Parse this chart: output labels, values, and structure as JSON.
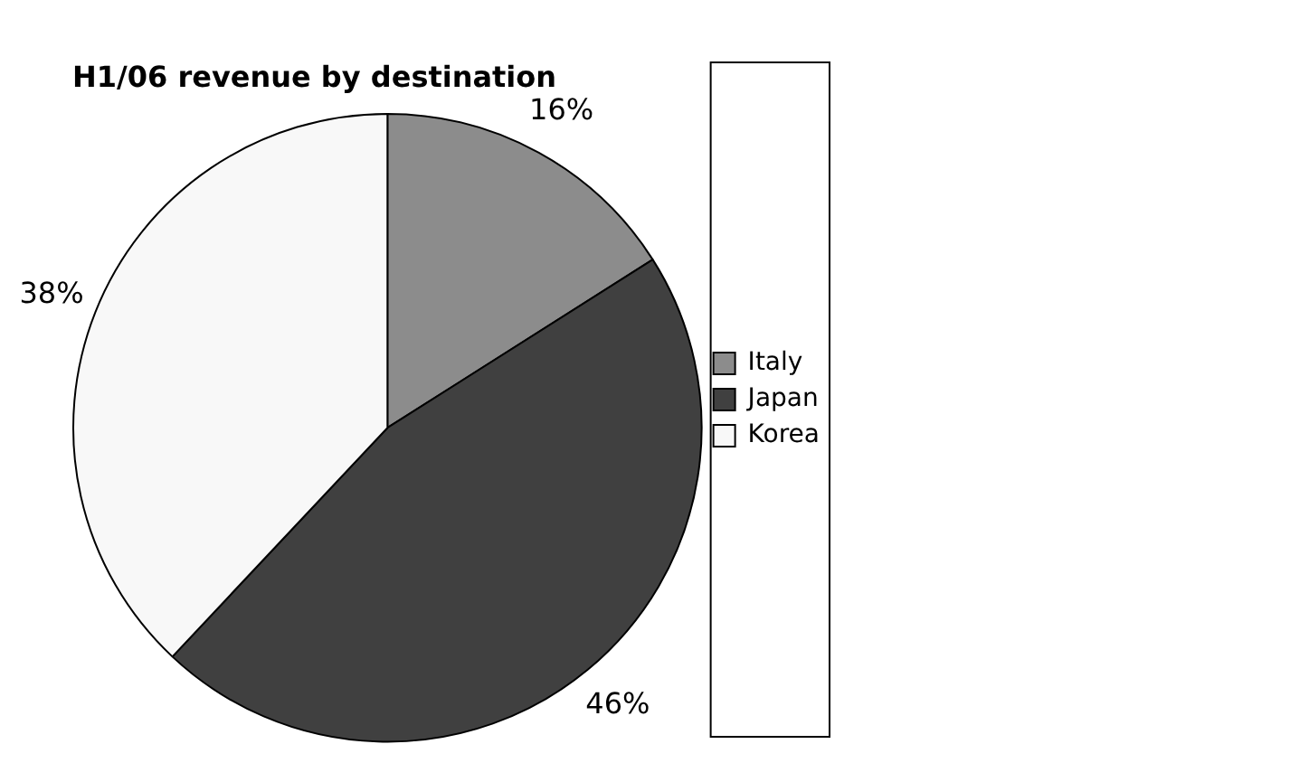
{
  "chart_data": {
    "type": "pie",
    "title": "H1/06 revenue by destination",
    "categories": [
      "Italy",
      "Japan",
      "Korea"
    ],
    "values": [
      16,
      46,
      38
    ],
    "value_labels": [
      "16%",
      "46%",
      "38%"
    ],
    "colors": [
      "#8c8c8c",
      "#404040",
      "#f8f8f8"
    ],
    "legend": "right"
  }
}
